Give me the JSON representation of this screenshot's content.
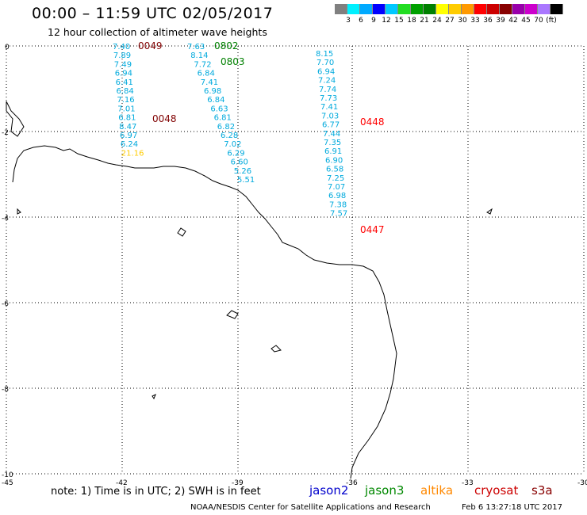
{
  "title": "00:00 – 11:59 UTC 02/05/2017",
  "subtitle": "12 hour collection of altimeter wave heights",
  "color_scale": {
    "colors": [
      "#808080",
      "#00f0ff",
      "#00aaff",
      "#0000ff",
      "#00c8ff",
      "#22dd22",
      "#00a000",
      "#008000",
      "#ffff00",
      "#ffcc00",
      "#ff9900",
      "#ff0000",
      "#cc0000",
      "#880000",
      "#9900aa",
      "#cc00cc",
      "#aa77ff",
      "#000000"
    ],
    "labels": [
      "3",
      "6",
      "9",
      "12",
      "15",
      "18",
      "21",
      "24",
      "27",
      "30",
      "33",
      "36",
      "39",
      "42",
      "45",
      "70",
      "(ft)"
    ]
  },
  "axes": {
    "x_ticks": [
      "-45",
      "-42",
      "-39",
      "-36",
      "-33",
      "-30"
    ],
    "y_ticks": [
      "0",
      "-2",
      "-4",
      "-6",
      "-8",
      "-10"
    ]
  },
  "passes": [
    {
      "time": "0049",
      "color": "#800000",
      "satellite": "cryosat",
      "values": [
        "7.40",
        "7.89",
        "7.49",
        "6.94",
        "6.41",
        "6.84",
        "7.16",
        "7.01",
        "6.81",
        "8.47",
        "6.97",
        "6.24",
        "21.16"
      ]
    },
    {
      "time": "0048",
      "color": "#800000",
      "satellite": "cryosat"
    },
    {
      "time": "0802",
      "color": "#008000",
      "satellite": "jason3",
      "values": [
        "7.63",
        "8.14",
        "7.72",
        "6.84",
        "7.41",
        "6.98",
        "6.84",
        "6.63",
        "6.81",
        "6.82",
        "6.28",
        "7.02",
        "6.29",
        "6.60",
        "5.26",
        "5.51"
      ]
    },
    {
      "time": "0803",
      "color": "#008000",
      "satellite": "jason3"
    },
    {
      "time": "0448",
      "color": "#ff0000",
      "satellite": "cryosat",
      "values": [
        "8.15",
        "7.70",
        "6.94",
        "7.24",
        "7.74",
        "7.73",
        "7.41",
        "7.03",
        "6.77",
        "7.44",
        "7.35",
        "6.91",
        "6.90",
        "6.58",
        "7.25",
        "7.07",
        "6.98",
        "7.38",
        "7.57"
      ]
    },
    {
      "time": "0447",
      "color": "#ff0000",
      "satellite": "cryosat"
    }
  ],
  "note": "note: 1) Time is in UTC; 2) SWH is in feet",
  "legend": [
    {
      "label": "jason2",
      "color": "#0000cc"
    },
    {
      "label": "jason3",
      "color": "#008800"
    },
    {
      "label": "altika",
      "color": "#ff8800"
    },
    {
      "label": "cryosat",
      "color": "#cc0000"
    },
    {
      "label": "s3a",
      "color": "#880000"
    }
  ],
  "credit": "NOAA/NESDIS Center for Satellite Applications and Research",
  "generated": "Feb  6 13:27:18 UTC 2017"
}
